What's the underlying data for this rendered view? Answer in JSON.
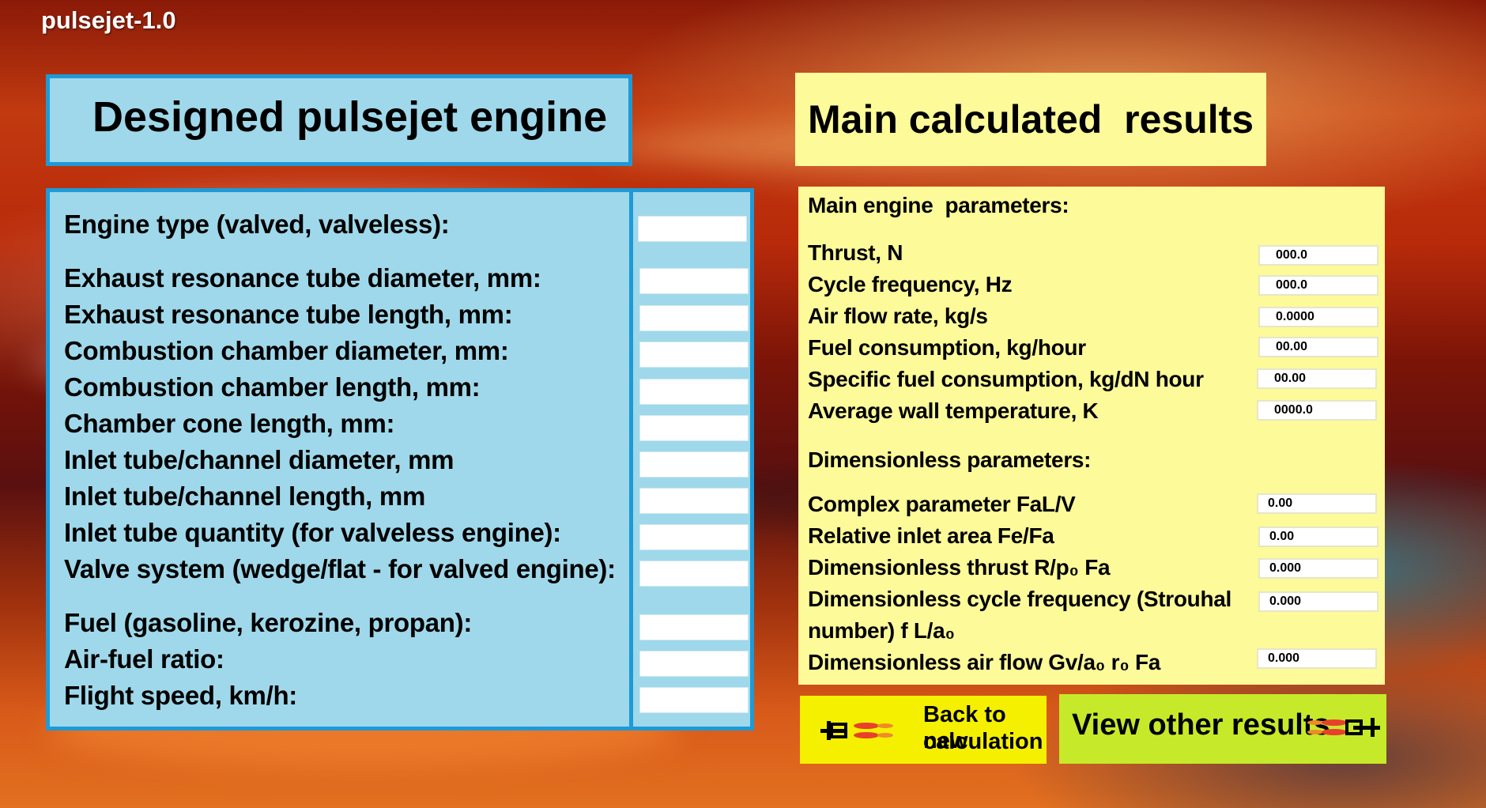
{
  "app": {
    "title": "pulsejet-1.0"
  },
  "design_panel": {
    "title": "Designed pulsejet engine",
    "fields": [
      {
        "label": "Engine type (valved, valveless):",
        "value": ""
      },
      {
        "label": "Exhaust resonance tube diameter, mm:",
        "value": ""
      },
      {
        "label": "Exhaust resonance tube length, mm:",
        "value": ""
      },
      {
        "label": "Combustion chamber diameter, mm:",
        "value": ""
      },
      {
        "label": "Combustion chamber length, mm:",
        "value": ""
      },
      {
        "label": "Chamber cone length, mm:",
        "value": ""
      },
      {
        "label": "Inlet tube/channel diameter, mm",
        "value": ""
      },
      {
        "label": "Inlet tube/channel length, mm",
        "value": ""
      },
      {
        "label": "Inlet tube quantity (for valveless engine):",
        "value": ""
      },
      {
        "label": "Valve system (wedge/flat - for valved engine):",
        "value": ""
      },
      {
        "label": "Fuel (gasoline, kerozine, propan):",
        "value": ""
      },
      {
        "label": "Air-fuel ratio:",
        "value": ""
      },
      {
        "label": "Flight speed, km/h:",
        "value": ""
      }
    ]
  },
  "results_panel": {
    "title": "Main calculated  results",
    "main_section": "Main engine  parameters:",
    "main": [
      {
        "label": "Thrust, N",
        "value": "000.0"
      },
      {
        "label": "Cycle frequency, Hz",
        "value": "000.0"
      },
      {
        "label": "Air flow rate, kg/s",
        "value": "0.0000"
      },
      {
        "label": "Fuel consumption, kg/hour",
        "value": "00.00"
      },
      {
        "label": "Specific fuel consumption, kg/dN hour",
        "value": "00.00"
      },
      {
        "label": "Average wall temperature, K",
        "value": "0000.0"
      }
    ],
    "dim_section": "Dimensionless parameters:",
    "dim": [
      {
        "label": "Complex parameter FaL/V",
        "value": "0.00"
      },
      {
        "label": "Relative inlet area Fe/Fa",
        "value": "0.00"
      },
      {
        "label": "Dimensionless thrust R/p₀ Fa",
        "value": "0.000"
      },
      {
        "label": "Dimensionless cycle frequency (Strouhal",
        "label2": "number) f L/a₀",
        "value": "0.000"
      },
      {
        "label": "Dimensionless air flow Gv/a₀ r₀ Fa",
        "value": "0.000"
      }
    ]
  },
  "buttons": {
    "back_line1": "Back to new",
    "back_line2": "calculation",
    "view": "View other results"
  },
  "colors": {
    "blue_panel": "#9fd8ea",
    "blue_border": "#1e9ad6",
    "yellow_panel": "#fdfa99",
    "green_button": "#c6ea2a",
    "yellow_button": "#f5f000"
  }
}
